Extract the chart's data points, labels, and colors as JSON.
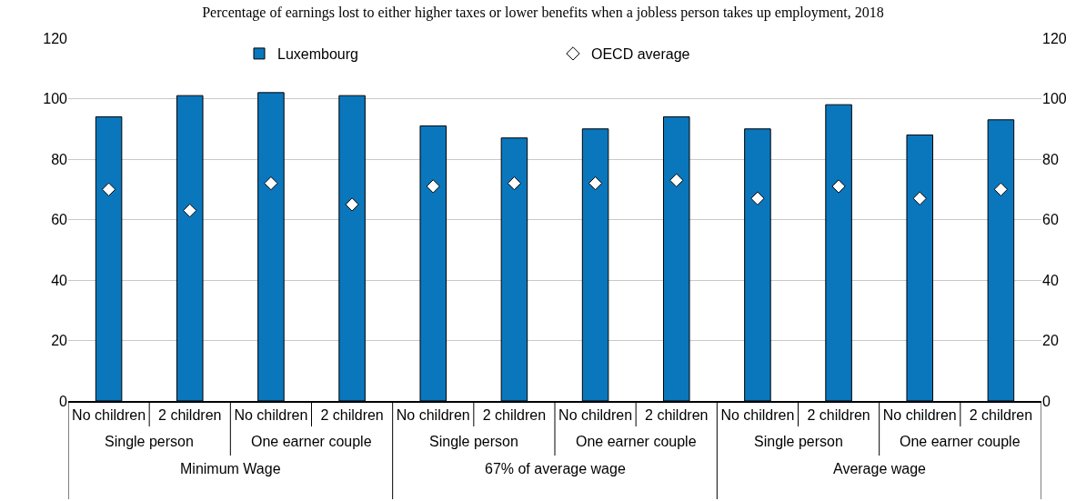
{
  "chart_data": {
    "type": "bar",
    "title": "Percentage of earnings lost to either higher taxes or lower benefits when a jobless person takes up employment, 2018",
    "categories": [
      "No children",
      "2 children",
      "No children",
      "2 children",
      "No children",
      "2 children",
      "No children",
      "2 children",
      "No children",
      "2 children",
      "No children",
      "2 children"
    ],
    "series": [
      {
        "name": "Luxembourg",
        "color": "#0a77bd",
        "values": [
          94,
          101,
          102,
          101,
          91,
          87,
          90,
          94,
          90,
          98,
          88,
          93
        ]
      },
      {
        "name": "OECD average",
        "type": "scatter",
        "color": "#ffffff",
        "values": [
          70,
          63,
          72,
          65,
          71,
          72,
          72,
          73,
          67,
          71,
          67,
          70
        ]
      }
    ],
    "annotations": [
      "Single person",
      "One earner couple",
      "Single person",
      "One earner couple",
      "Single person",
      "One earner couple",
      "Minimum Wage",
      "67% of average wage",
      "Average wage"
    ],
    "ylim": [
      0,
      120
    ],
    "yticks": [
      0,
      20,
      40,
      60,
      80,
      100,
      120
    ],
    "y2lim": [
      0,
      120
    ],
    "y2ticks": [
      0,
      20,
      40,
      60,
      80,
      100,
      120
    ],
    "grid": "y",
    "legend": "top",
    "marker": "diamond"
  }
}
